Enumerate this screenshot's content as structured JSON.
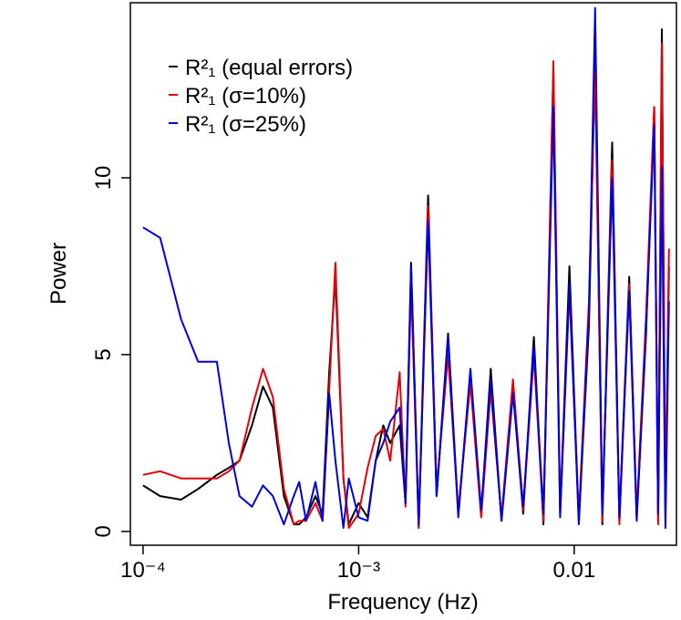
{
  "chart_data": {
    "type": "line",
    "x_label": "Frequency (Hz)",
    "y_label": "Power",
    "log_x": true,
    "xlim": [
      8.73e-05,
      0.0298
    ],
    "ylim": [
      -0.39,
      14.95
    ],
    "xticks": [
      {
        "value": 0.0001,
        "label": "10⁻⁴"
      },
      {
        "value": 0.001,
        "label": "10⁻³"
      },
      0.01
    ],
    "yticks": [
      0,
      5,
      10
    ],
    "legend": "upper left",
    "x": [
      0.0001,
      0.00012,
      0.00015,
      0.00018,
      0.00022,
      0.00025,
      0.00028,
      0.00032,
      0.00036,
      0.0004,
      0.00045,
      0.0005,
      0.00053,
      0.00057,
      0.00063,
      0.00068,
      0.00073,
      0.00078,
      0.00085,
      0.0009,
      0.001,
      0.0011,
      0.0012,
      0.0013,
      0.0014,
      0.00155,
      0.00165,
      0.00175,
      0.0019,
      0.0021,
      0.0023,
      0.0026,
      0.0029,
      0.0033,
      0.0037,
      0.0041,
      0.0046,
      0.0052,
      0.0058,
      0.0065,
      0.0072,
      0.008,
      0.0086,
      0.0095,
      0.0105,
      0.0117,
      0.0125,
      0.0135,
      0.015,
      0.0162,
      0.018,
      0.0195,
      0.0215,
      0.0235,
      0.0245,
      0.0255,
      0.0265,
      0.0275
    ],
    "series": [
      {
        "name": "R²₁ (equal errors)",
        "color": "#000000",
        "values": [
          1.3,
          1.0,
          0.9,
          1.2,
          1.6,
          1.8,
          2.0,
          3.0,
          4.1,
          3.5,
          1.0,
          0.2,
          0.2,
          0.4,
          1.0,
          0.5,
          4.5,
          7.2,
          1.5,
          0.2,
          0.8,
          0.4,
          2.0,
          3.0,
          2.5,
          3.0,
          0.8,
          7.6,
          0.1,
          9.5,
          1.0,
          5.6,
          0.5,
          4.5,
          0.5,
          4.6,
          0.3,
          4.0,
          0.5,
          5.5,
          0.2,
          13.0,
          0.5,
          7.5,
          0.3,
          5.8,
          13.5,
          0.2,
          11.0,
          0.3,
          7.2,
          0.4,
          5.5,
          12.0,
          0.3,
          14.2,
          0.5,
          7.5
        ]
      },
      {
        "name": "R²₁ (σ=10%)",
        "color": "#e8000b",
        "values": [
          1.6,
          1.7,
          1.5,
          1.5,
          1.5,
          1.7,
          2.0,
          3.5,
          4.6,
          3.8,
          1.2,
          0.2,
          0.3,
          0.3,
          0.8,
          0.3,
          4.0,
          7.6,
          1.5,
          0.1,
          0.5,
          1.8,
          2.7,
          2.9,
          2.0,
          4.5,
          0.7,
          7.0,
          0.1,
          9.2,
          1.2,
          5.0,
          0.6,
          4.2,
          0.4,
          4.0,
          0.4,
          4.3,
          0.6,
          5.0,
          0.3,
          13.3,
          0.6,
          6.8,
          0.4,
          6.5,
          13.0,
          0.3,
          10.5,
          0.2,
          7.0,
          0.5,
          6.0,
          12.0,
          0.2,
          13.8,
          0.7,
          8.0
        ]
      },
      {
        "name": "R²₁ (σ=25%)",
        "color": "#0000dd",
        "values": [
          8.6,
          8.3,
          6.0,
          4.8,
          4.8,
          2.5,
          1.0,
          0.7,
          1.3,
          1.0,
          0.2,
          1.0,
          1.4,
          0.3,
          1.4,
          0.3,
          3.9,
          2.0,
          0.1,
          1.5,
          0.4,
          0.3,
          2.0,
          2.5,
          3.1,
          3.5,
          0.8,
          7.5,
          0.2,
          8.8,
          1.0,
          5.5,
          0.4,
          4.6,
          0.6,
          4.3,
          0.3,
          3.9,
          0.7,
          5.2,
          0.5,
          12.0,
          0.4,
          7.0,
          0.2,
          6.1,
          14.8,
          0.5,
          10.0,
          0.4,
          6.8,
          0.3,
          5.6,
          11.5,
          0.5,
          10.3,
          0.1,
          6.5
        ]
      }
    ]
  }
}
